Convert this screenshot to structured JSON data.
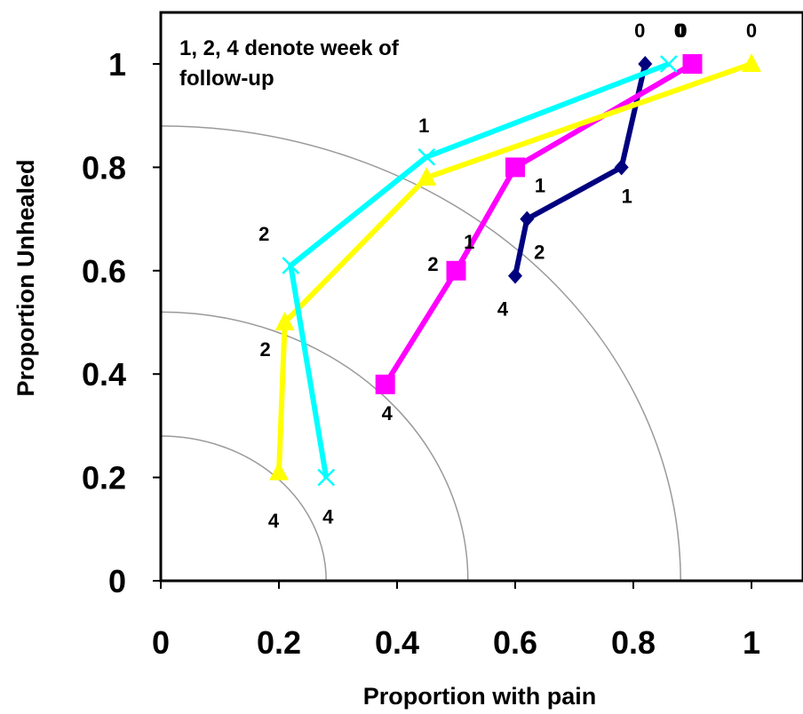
{
  "chart_data": {
    "type": "line",
    "title": "",
    "xlabel": "Proportion with pain",
    "ylabel": "Proportion Unhealed",
    "xlim": [
      0,
      1.06
    ],
    "ylim": [
      0,
      1.1
    ],
    "x_ticks": [
      "0",
      "0.2",
      "0.4",
      "0.6",
      "0.8",
      "1"
    ],
    "y_ticks": [
      "0",
      "0.2",
      "0.4",
      "0.6",
      "0.8",
      "1"
    ],
    "annotation": [
      "1, 2, 4 denote week of",
      "follow-up"
    ],
    "grid": false,
    "arcs": [
      {
        "radius": 0.28
      },
      {
        "radius": 0.52
      },
      {
        "radius": 0.88
      }
    ],
    "series": [
      {
        "color": "#00007f",
        "marker": "diamond",
        "points": [
          {
            "x": 0.82,
            "y": 1.0,
            "label": "0"
          },
          {
            "x": 0.78,
            "y": 0.8,
            "label": "1"
          },
          {
            "x": 0.62,
            "y": 0.7,
            "label": "2"
          },
          {
            "x": 0.6,
            "y": 0.59,
            "label": "4"
          }
        ]
      },
      {
        "color": "#ff00ff",
        "marker": "square",
        "points": [
          {
            "x": 0.9,
            "y": 1.0,
            "label": "0"
          },
          {
            "x": 0.6,
            "y": 0.8,
            "label": "1"
          },
          {
            "x": 0.5,
            "y": 0.6,
            "label": "2"
          },
          {
            "x": 0.38,
            "y": 0.38,
            "label": "4"
          }
        ]
      },
      {
        "color": "#ffff00",
        "marker": "triangle",
        "points": [
          {
            "x": 1.0,
            "y": 1.0,
            "label": "0"
          },
          {
            "x": 0.45,
            "y": 0.78,
            "label": "1"
          },
          {
            "x": 0.21,
            "y": 0.5,
            "label": "2"
          },
          {
            "x": 0.2,
            "y": 0.21,
            "label": "4"
          }
        ]
      },
      {
        "color": "#00ffff",
        "marker": "x",
        "points": [
          {
            "x": 0.86,
            "y": 1.0,
            "label": "0"
          },
          {
            "x": 0.45,
            "y": 0.82,
            "label": "1"
          },
          {
            "x": 0.22,
            "y": 0.61,
            "label": "2"
          },
          {
            "x": 0.28,
            "y": 0.2,
            "label": "4"
          }
        ]
      }
    ]
  }
}
